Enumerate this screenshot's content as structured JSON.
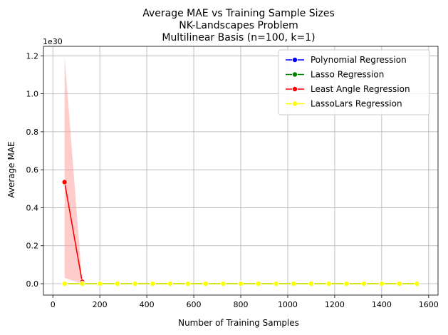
{
  "chart_data": {
    "type": "line",
    "title_lines": [
      "Average MAE vs Training Sample Sizes",
      "NK-Landscapes Problem",
      "Multilinear Basis (n=100, k=1)"
    ],
    "xlabel": "Number of Training Samples",
    "ylabel": "Average MAE",
    "y_offset_label": "1e30",
    "xlim": [
      -40,
      1640
    ],
    "ylim": [
      -0.06,
      1.25
    ],
    "x_ticks": [
      0,
      200,
      400,
      600,
      800,
      1000,
      1200,
      1400,
      1600
    ],
    "x_tick_labels": [
      "0",
      "200",
      "400",
      "600",
      "800",
      "1000",
      "1200",
      "1400",
      "1600"
    ],
    "y_ticks": [
      0.0,
      0.2,
      0.4,
      0.6,
      0.8,
      1.0,
      1.2
    ],
    "y_tick_labels": [
      "0.0",
      "0.2",
      "0.4",
      "0.6",
      "0.8",
      "1.0",
      "1.2"
    ],
    "grid": true,
    "legend_position": "top-right",
    "x": [
      50,
      125,
      200,
      275,
      350,
      425,
      500,
      575,
      650,
      725,
      800,
      875,
      950,
      1025,
      1100,
      1175,
      1250,
      1325,
      1400,
      1475,
      1550
    ],
    "series": [
      {
        "name": "Polynomial Regression",
        "color": "#0000ff",
        "values": [
          0,
          0,
          0,
          0,
          0,
          0,
          0,
          0,
          0,
          0,
          0,
          0,
          0,
          0,
          0,
          0,
          0,
          0,
          0,
          0,
          0
        ]
      },
      {
        "name": "Lasso Regression",
        "color": "#008000",
        "values": [
          0,
          0,
          0,
          0,
          0,
          0,
          0,
          0,
          0,
          0,
          0,
          0,
          0,
          0,
          0,
          0,
          0,
          0,
          0,
          0,
          0
        ]
      },
      {
        "name": "Least Angle Regression",
        "color": "#ff0000",
        "values": [
          0.535,
          0.01,
          null,
          null,
          null,
          null,
          null,
          null,
          null,
          null,
          null,
          null,
          null,
          null,
          null,
          null,
          null,
          null,
          null,
          null,
          null
        ],
        "band_upper": [
          1.195,
          0.01
        ],
        "band_lower": [
          0.03,
          0.0
        ],
        "band_color": "#ff9999"
      },
      {
        "name": "LassoLars Regression",
        "color": "#ffff00",
        "values": [
          0,
          0,
          0,
          0,
          0,
          0,
          0,
          0,
          0,
          0,
          0,
          0,
          0,
          0,
          0,
          0,
          0,
          0,
          0,
          0,
          0
        ]
      }
    ]
  }
}
